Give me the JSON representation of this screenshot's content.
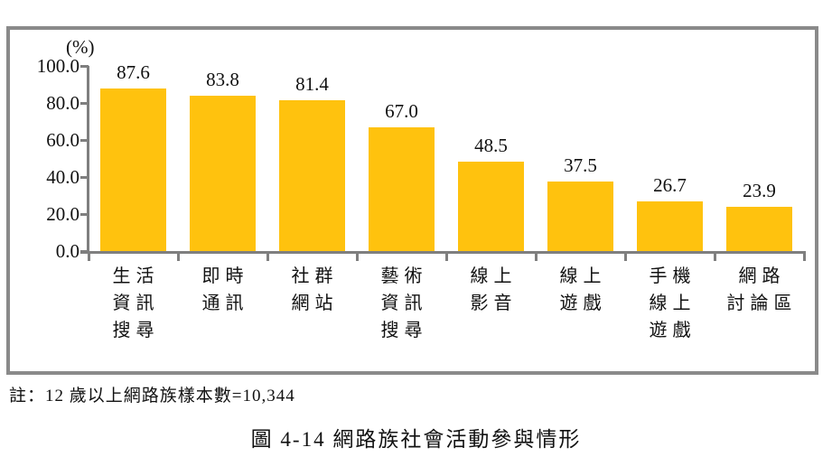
{
  "figure": {
    "note": "註：12 歲以上網路族樣本數=10,344",
    "caption": "圖 4-14 網路族社會活動參與情形"
  },
  "chart_data": {
    "type": "bar",
    "title": "圖 4-14 網路族社會活動參與情形",
    "unit_label": "(%)",
    "categories": [
      "生活資訊搜尋",
      "即時通訊",
      "社群網站",
      "藝術資訊搜尋",
      "線上影音",
      "線上遊戲",
      "手機線上遊戲",
      "網路討論區"
    ],
    "category_lines": [
      [
        "生活",
        "資訊",
        "搜尋"
      ],
      [
        "即時",
        "通訊"
      ],
      [
        "社群",
        "網站"
      ],
      [
        "藝術",
        "資訊",
        "搜尋"
      ],
      [
        "線上",
        "影音"
      ],
      [
        "線上",
        "遊戲"
      ],
      [
        "手機",
        "線上",
        "遊戲"
      ],
      [
        "網路",
        "討論區"
      ]
    ],
    "values": [
      87.6,
      83.8,
      81.4,
      67.0,
      48.5,
      37.5,
      26.7,
      23.9
    ],
    "value_labels": [
      "87.6",
      "83.8",
      "81.4",
      "67.0",
      "48.5",
      "37.5",
      "26.7",
      "23.9"
    ],
    "xlabel": "",
    "ylabel": "(%)",
    "ylim": [
      0,
      100
    ],
    "yticks": [
      0,
      20,
      40,
      60,
      80,
      100
    ],
    "ytick_labels": [
      "0.0",
      "20.0",
      "40.0",
      "60.0",
      "80.0",
      "100.0"
    ],
    "grid": false,
    "legend": "none",
    "bar_color": "#FFC20E",
    "axis_color": "#7F7F7F",
    "frame_color": "#8A8A8A",
    "note": "註：12 歲以上網路族樣本數=10,344"
  }
}
